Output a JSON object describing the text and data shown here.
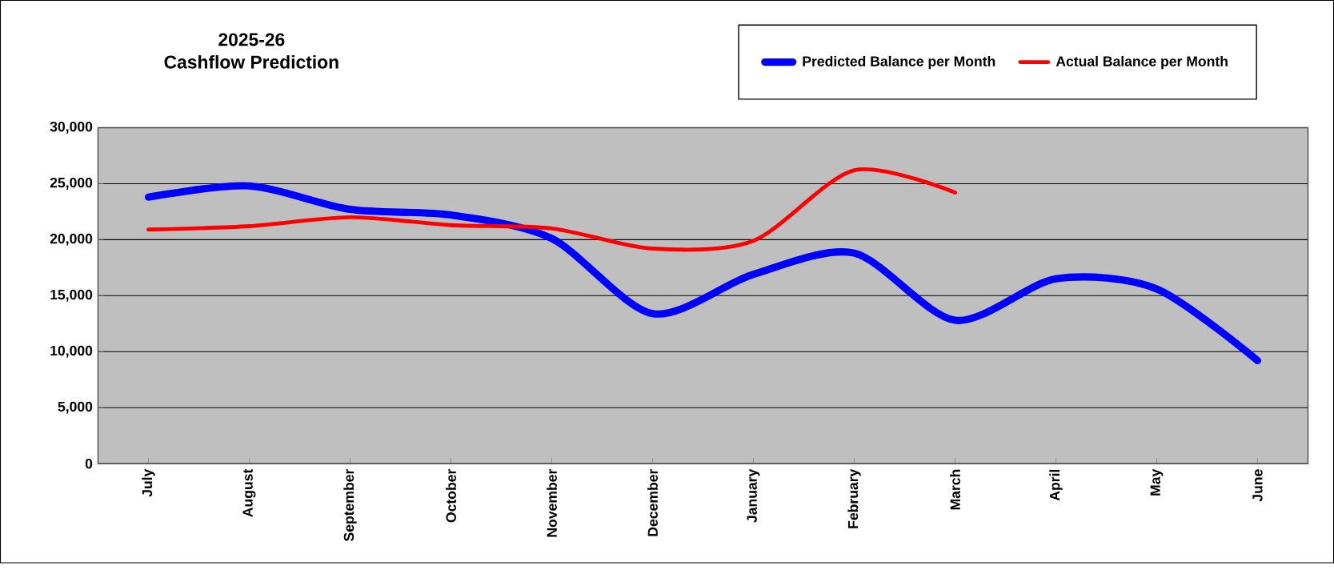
{
  "chart_data": {
    "type": "line",
    "title": "2025-26",
    "subtitle": "Cashflow Prediction",
    "categories": [
      "July",
      "August",
      "September",
      "October",
      "November",
      "December",
      "January",
      "February",
      "March",
      "April",
      "May",
      "June"
    ],
    "series": [
      {
        "name": "Predicted Balance per Month",
        "color": "#0000ff",
        "values": [
          23800,
          24800,
          22700,
          22200,
          20100,
          13400,
          16900,
          18800,
          12800,
          16500,
          15600,
          9200
        ]
      },
      {
        "name": "Actual Balance per Month",
        "color": "#ff0000",
        "values": [
          20900,
          21200,
          22000,
          21300,
          21000,
          19200,
          19900,
          26200,
          24200,
          null,
          null,
          null
        ]
      }
    ],
    "ylim": [
      0,
      30000
    ],
    "yticks": [
      {
        "value": 0,
        "label": "0"
      },
      {
        "value": 5000,
        "label": "5,000"
      },
      {
        "value": 10000,
        "label": "10,000"
      },
      {
        "value": 15000,
        "label": "15,000"
      },
      {
        "value": 20000,
        "label": "20,000"
      },
      {
        "value": 25000,
        "label": "25,000"
      },
      {
        "value": 30000,
        "label": "30,000"
      }
    ],
    "grid": "y",
    "legend": "top right",
    "marker": "none",
    "line_style": "solid"
  }
}
